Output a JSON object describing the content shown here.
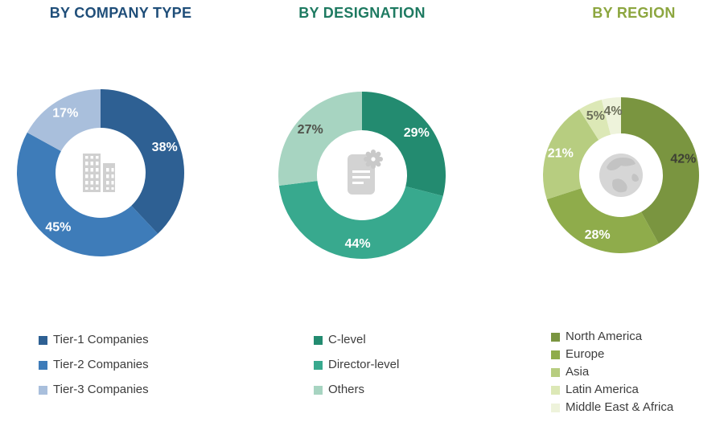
{
  "figure": {
    "background": "#ffffff"
  },
  "chart_data": [
    {
      "type": "pie",
      "subtype": "donut",
      "title": "BY COMPANY TYPE",
      "title_color": "#1F4E79",
      "icon": "building-icon",
      "labels": [
        "Tier-1 Companies",
        "Tier-2 Companies",
        "Tier-3 Companies"
      ],
      "values": [
        38,
        45,
        17
      ],
      "colors": [
        "#2E6093",
        "#3E7CB9",
        "#A9BFDC"
      ],
      "value_label_colors": [
        "#FFFFFF",
        "#FFFFFF",
        "#FFFFFF"
      ],
      "value_suffix": "%",
      "legend_position": "bottom",
      "start_angle_deg": 0,
      "direction": "clockwise",
      "outer_radius": 104,
      "inner_radius": 56
    },
    {
      "type": "pie",
      "subtype": "donut",
      "title": "BY DESIGNATION",
      "title_color": "#1E7A61",
      "icon": "certificate-icon",
      "labels": [
        "C-level",
        "Director-level",
        "Others"
      ],
      "values": [
        29,
        44,
        27
      ],
      "colors": [
        "#238B70",
        "#38A98E",
        "#A7D4C1"
      ],
      "value_label_colors": [
        "#FFFFFF",
        "#FFFFFF",
        "#50524B"
      ],
      "value_suffix": "%",
      "legend_position": "bottom",
      "start_angle_deg": 0,
      "direction": "clockwise",
      "outer_radius": 104,
      "inner_radius": 56
    },
    {
      "type": "pie",
      "subtype": "donut",
      "title": "BY REGION",
      "title_color": "#8CA63F",
      "icon": "globe-icon",
      "labels": [
        "North America",
        "Europe",
        "Asia",
        "Latin America",
        "Middle East & Africa"
      ],
      "values": [
        42,
        28,
        21,
        5,
        4
      ],
      "colors": [
        "#7A9540",
        "#8FAC4B",
        "#B7CD80",
        "#DCE8B6",
        "#EEF3DB"
      ],
      "value_label_colors": [
        "#3E4034",
        "#FFFFFF",
        "#FFFFFF",
        "#6C6F5A",
        "#6C6F5A"
      ],
      "value_suffix": "%",
      "legend_position": "bottom",
      "start_angle_deg": 0,
      "direction": "clockwise",
      "outer_radius": 97,
      "inner_radius": 52
    }
  ]
}
